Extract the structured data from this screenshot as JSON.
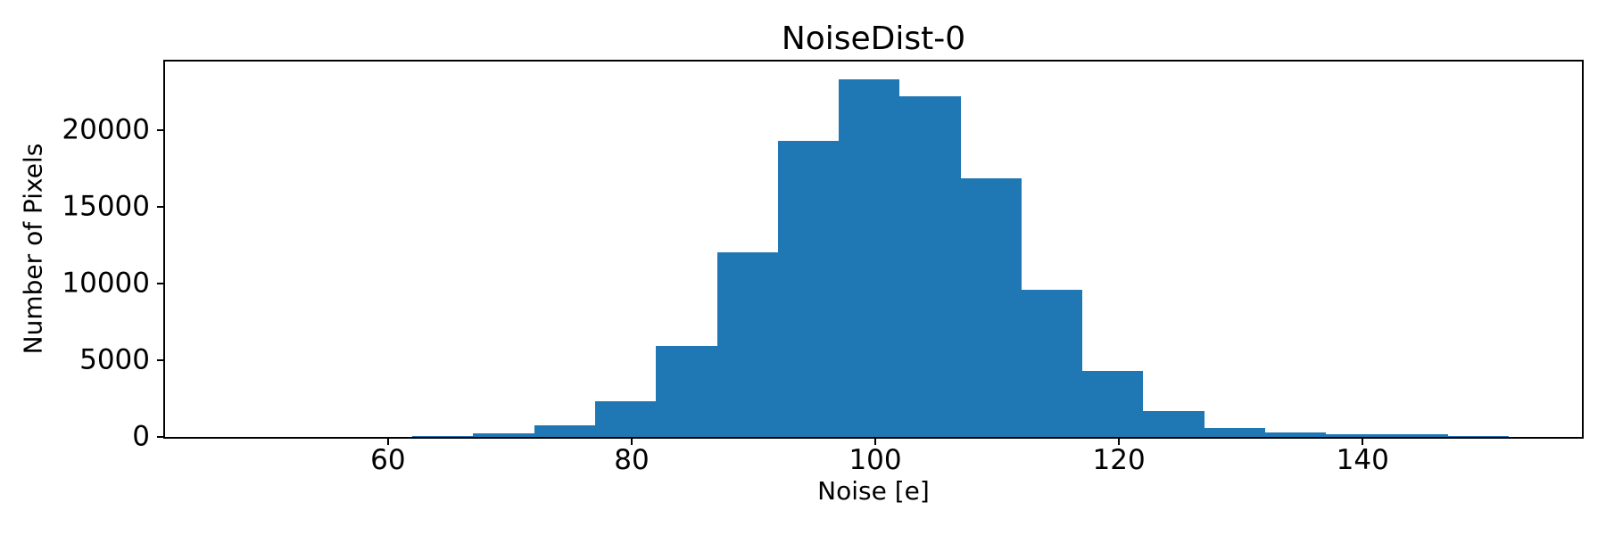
{
  "figure": {
    "background_color": "#ffffff",
    "text_color": "#000000"
  },
  "chart_data": {
    "type": "bar",
    "subtype": "histogram",
    "title": "NoiseDist-0",
    "xlabel": "Noise [e]",
    "ylabel": "Number of Pixels",
    "bar_color": "#1f77b4",
    "grid": false,
    "legend": false,
    "bin_edges": [
      62,
      67,
      72,
      77,
      82,
      87,
      92,
      97,
      102,
      107,
      112,
      117,
      122,
      127,
      132,
      137,
      142,
      147,
      152
    ],
    "counts": [
      85,
      260,
      780,
      2320,
      5930,
      12020,
      19320,
      23290,
      22220,
      16850,
      9620,
      4310,
      1700,
      600,
      290,
      170,
      150,
      85
    ],
    "xlim": [
      41.7,
      158.0
    ],
    "ylim": [
      0,
      24480
    ],
    "x_ticks": [
      60,
      80,
      100,
      120,
      140
    ],
    "y_ticks": [
      0,
      5000,
      10000,
      15000,
      20000
    ]
  }
}
